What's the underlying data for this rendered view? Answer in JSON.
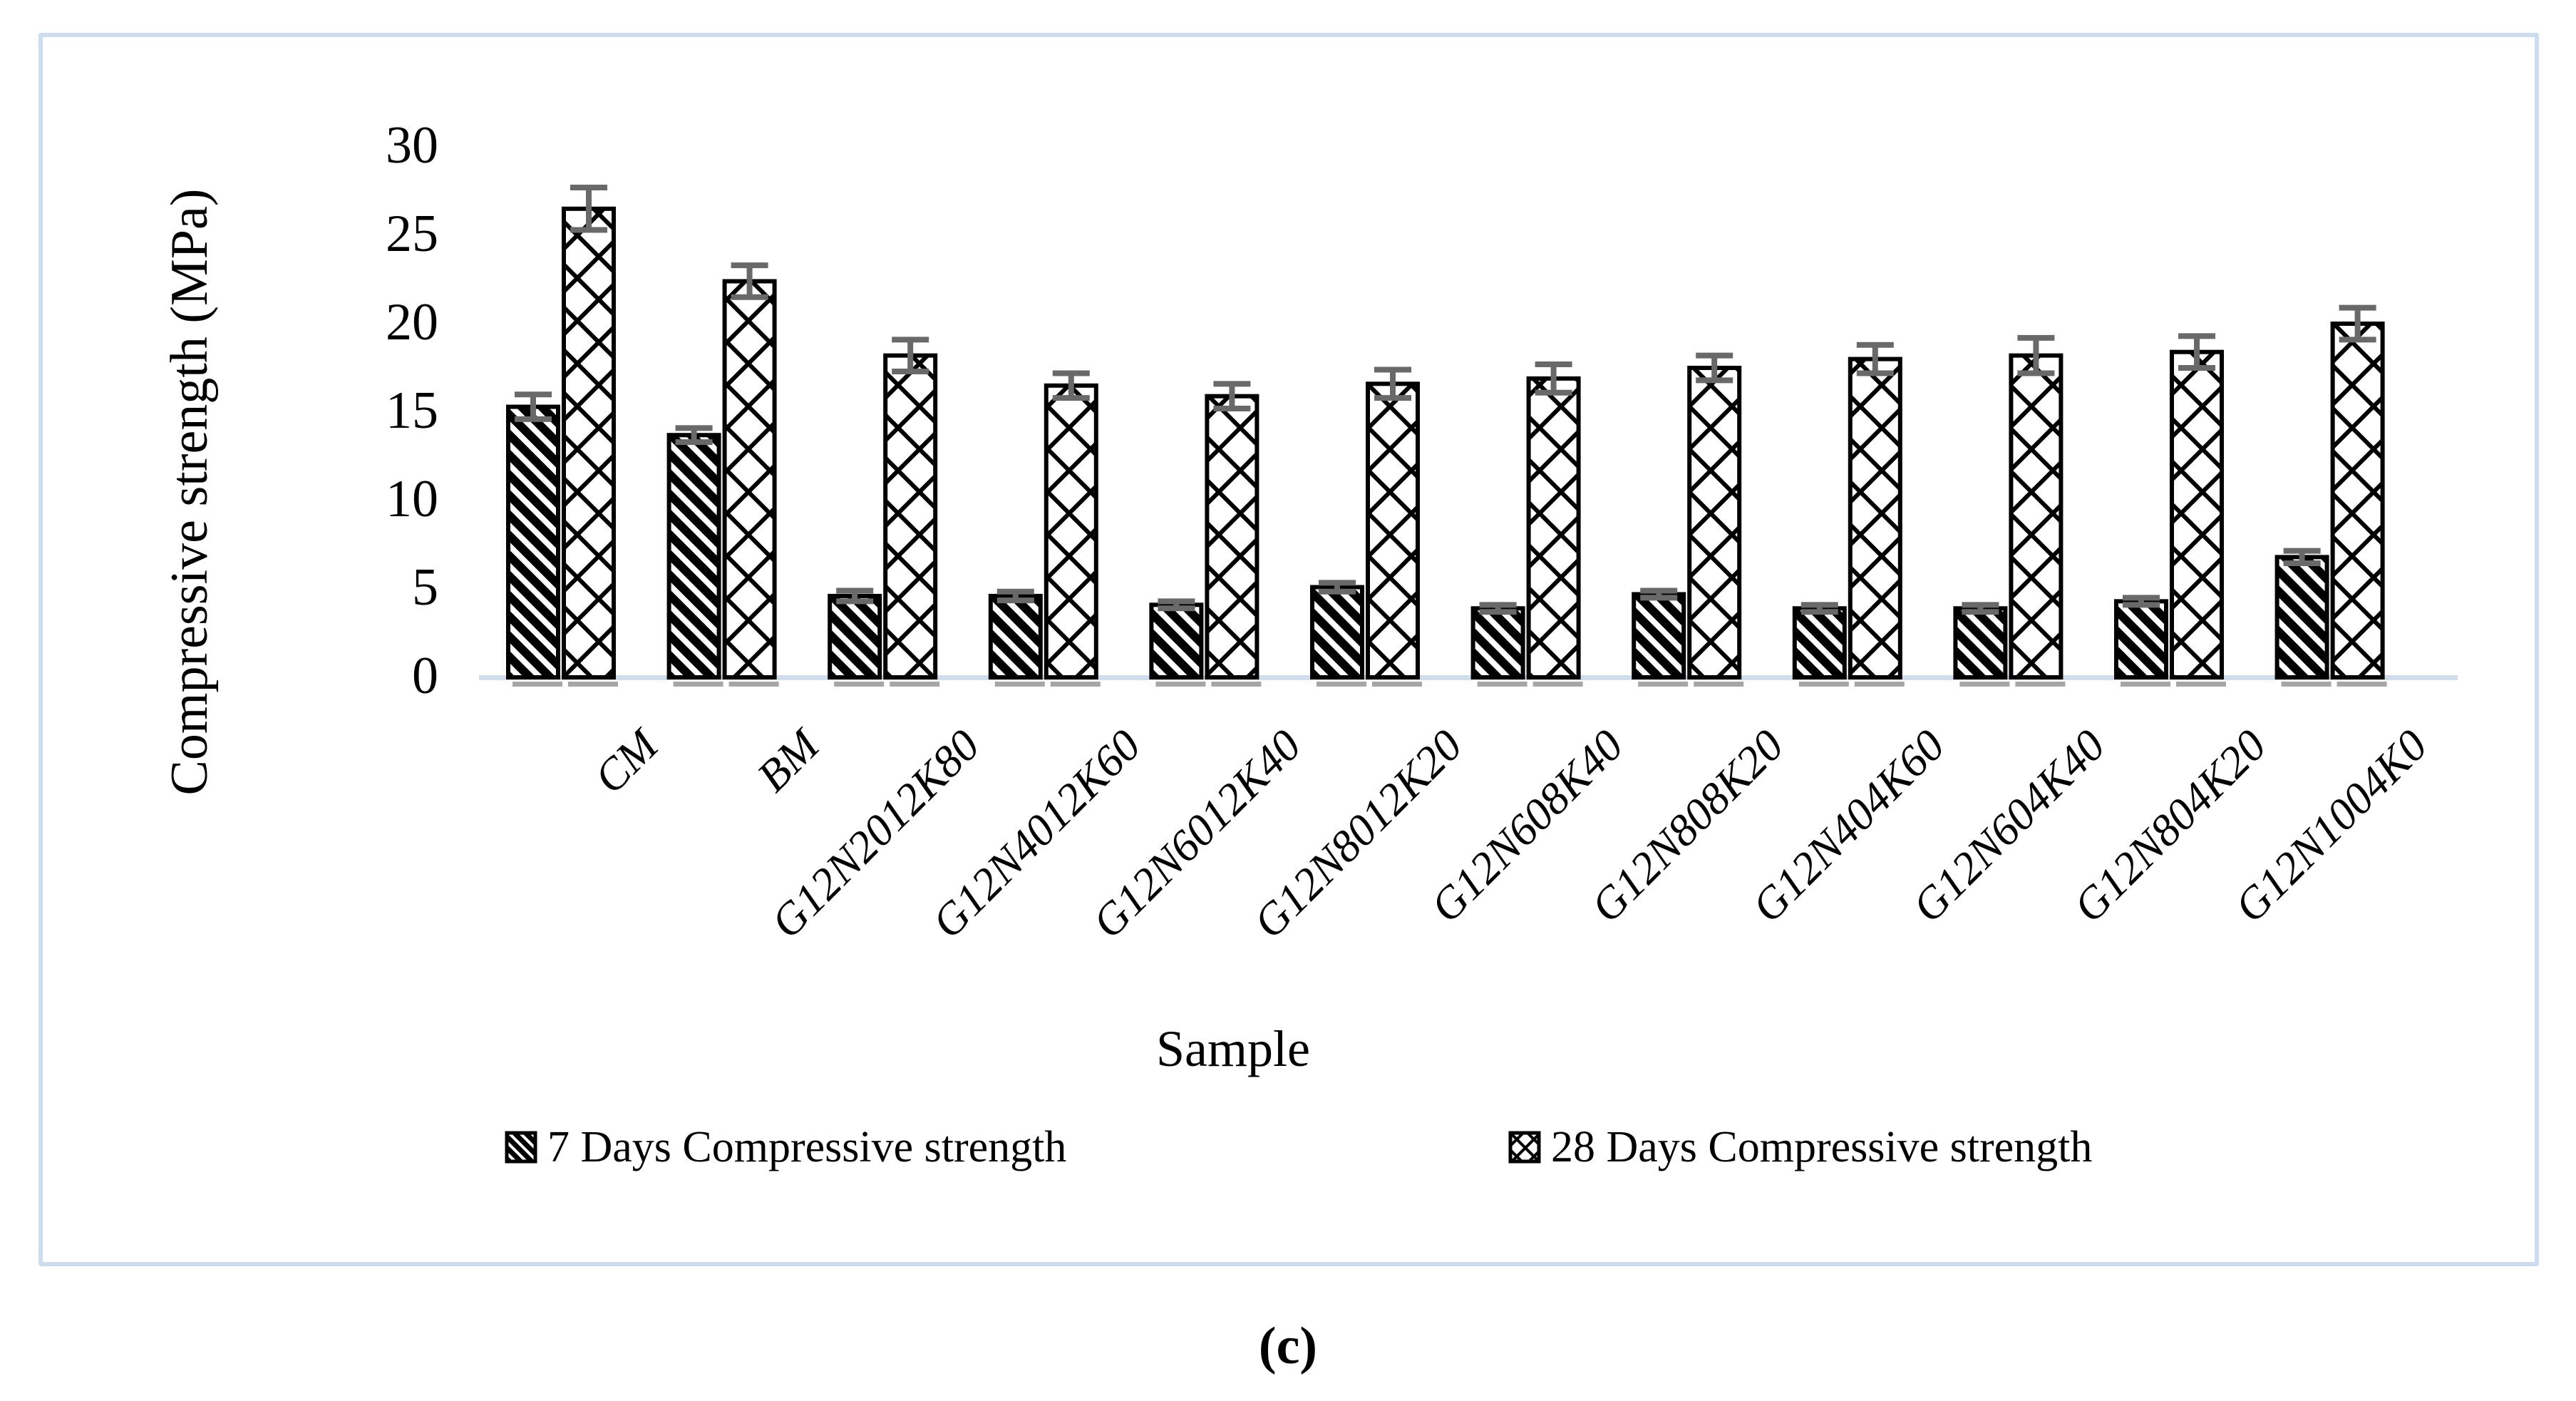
{
  "figure": {
    "caption": "(c)"
  },
  "chart_data": {
    "type": "bar",
    "title": "",
    "xlabel": "Sample",
    "ylabel": "Compressive strength (MPa)",
    "ylim": [
      0,
      30
    ],
    "yticks": [
      0,
      5,
      10,
      15,
      20,
      25,
      30
    ],
    "grid": false,
    "legend_position": "bottom",
    "categories": [
      "CM",
      "BM",
      "G12N2012K80",
      "G12N4012K60",
      "G12N6012K40",
      "G12N8012K20",
      "G12N608K40",
      "G12N808K20",
      "G12N404K60",
      "G12N604K40",
      "G12N804K20",
      "G12N1004K0"
    ],
    "series": [
      {
        "name": "7 Days Compressive strength",
        "pattern": "diagonal-stripes",
        "values": [
          15.3,
          13.7,
          4.6,
          4.6,
          4.1,
          5.1,
          3.9,
          4.7,
          3.9,
          3.9,
          4.3,
          6.8
        ],
        "errors": [
          0.7,
          0.4,
          0.3,
          0.25,
          0.2,
          0.25,
          0.2,
          0.2,
          0.2,
          0.2,
          0.2,
          0.35
        ]
      },
      {
        "name": "28 Days Compressive strength",
        "pattern": "diamond-crosshatch",
        "values": [
          26.5,
          22.4,
          18.2,
          16.5,
          15.9,
          16.6,
          16.9,
          17.5,
          18.0,
          18.2,
          18.4,
          20.0
        ],
        "errors": [
          1.2,
          0.9,
          0.9,
          0.7,
          0.7,
          0.8,
          0.8,
          0.7,
          0.8,
          1.0,
          0.9,
          0.9
        ]
      }
    ],
    "colors": {
      "bar_fill": "#ffffff",
      "bar_outline": "#000000",
      "error_bar": "#696969",
      "axis_line": "#cfdeef",
      "figure_border": "#cdddef",
      "bar_shadow": "#a6a6a6"
    }
  }
}
